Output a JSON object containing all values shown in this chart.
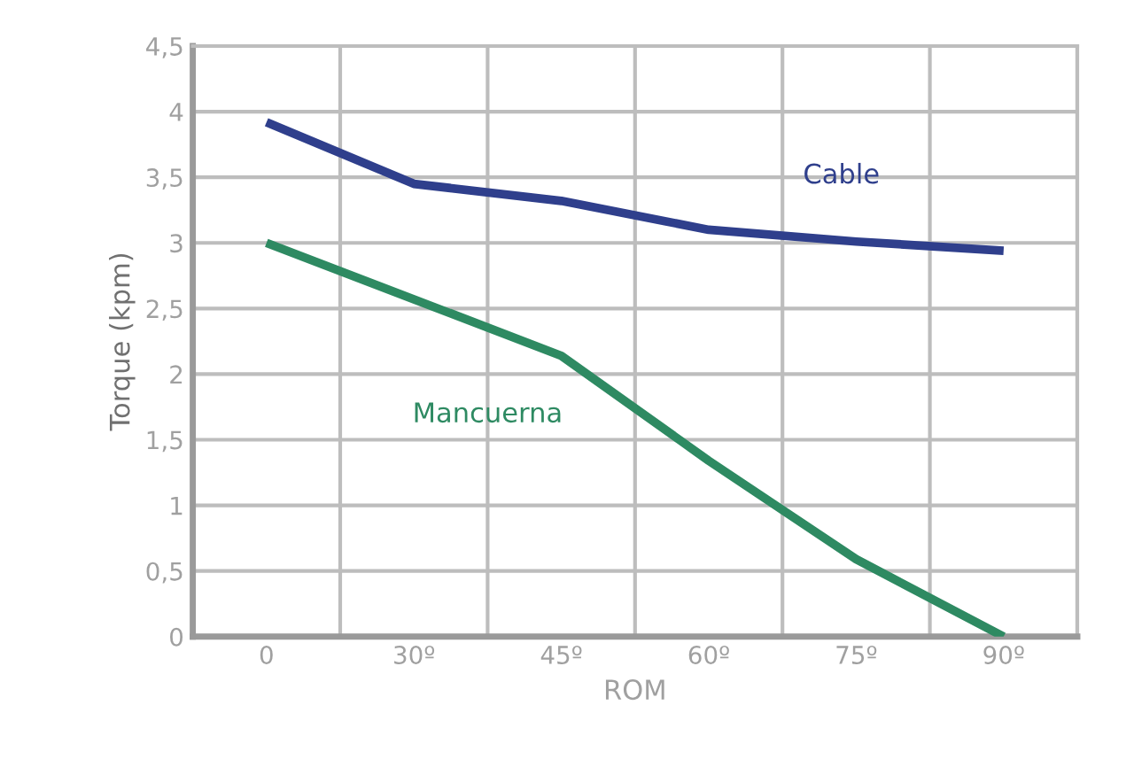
{
  "chart_data": {
    "type": "line",
    "xlabel": "ROM",
    "ylabel": "Torque (kpm)",
    "categories": [
      "0",
      "30º",
      "45º",
      "60º",
      "75º",
      "90º"
    ],
    "series": [
      {
        "name": "Cable",
        "color": "#2f3f8c",
        "values": [
          3.92,
          3.45,
          3.32,
          3.1,
          3.01,
          2.94
        ]
      },
      {
        "name": "Mancuerna",
        "color": "#2e8a62",
        "values": [
          3.0,
          2.57,
          2.14,
          1.34,
          0.59,
          0.0
        ]
      }
    ],
    "ylim": [
      0,
      4.5
    ],
    "yticks": [
      0,
      {
        "value": 0.5,
        "label": "0,5"
      },
      1,
      {
        "value": 1.5,
        "label": "1,5"
      },
      2,
      {
        "value": 2.5,
        "label": "2,5"
      },
      3,
      {
        "value": 3.5,
        "label": "3,5"
      },
      4,
      {
        "value": 4.5,
        "label": "4,5"
      }
    ],
    "grid": true,
    "legend": false,
    "marker": "none",
    "line_style": "solid"
  }
}
